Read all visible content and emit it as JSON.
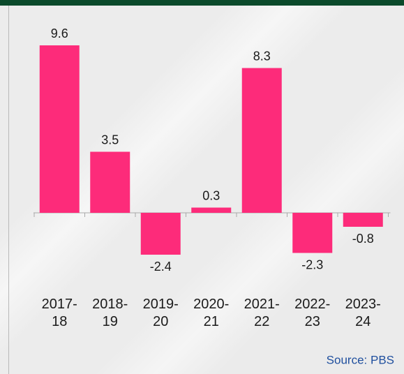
{
  "chart_data": {
    "type": "bar",
    "categories": [
      "2017-\n18",
      "2018-\n19",
      "2019-\n20",
      "2020-\n21",
      "2021-\n22",
      "2022-\n23",
      "2023-\n24"
    ],
    "values": [
      9.6,
      3.5,
      -2.4,
      0.3,
      8.3,
      -2.3,
      -0.8
    ],
    "color": "#fd2b7a",
    "source": "Source: PBS"
  }
}
